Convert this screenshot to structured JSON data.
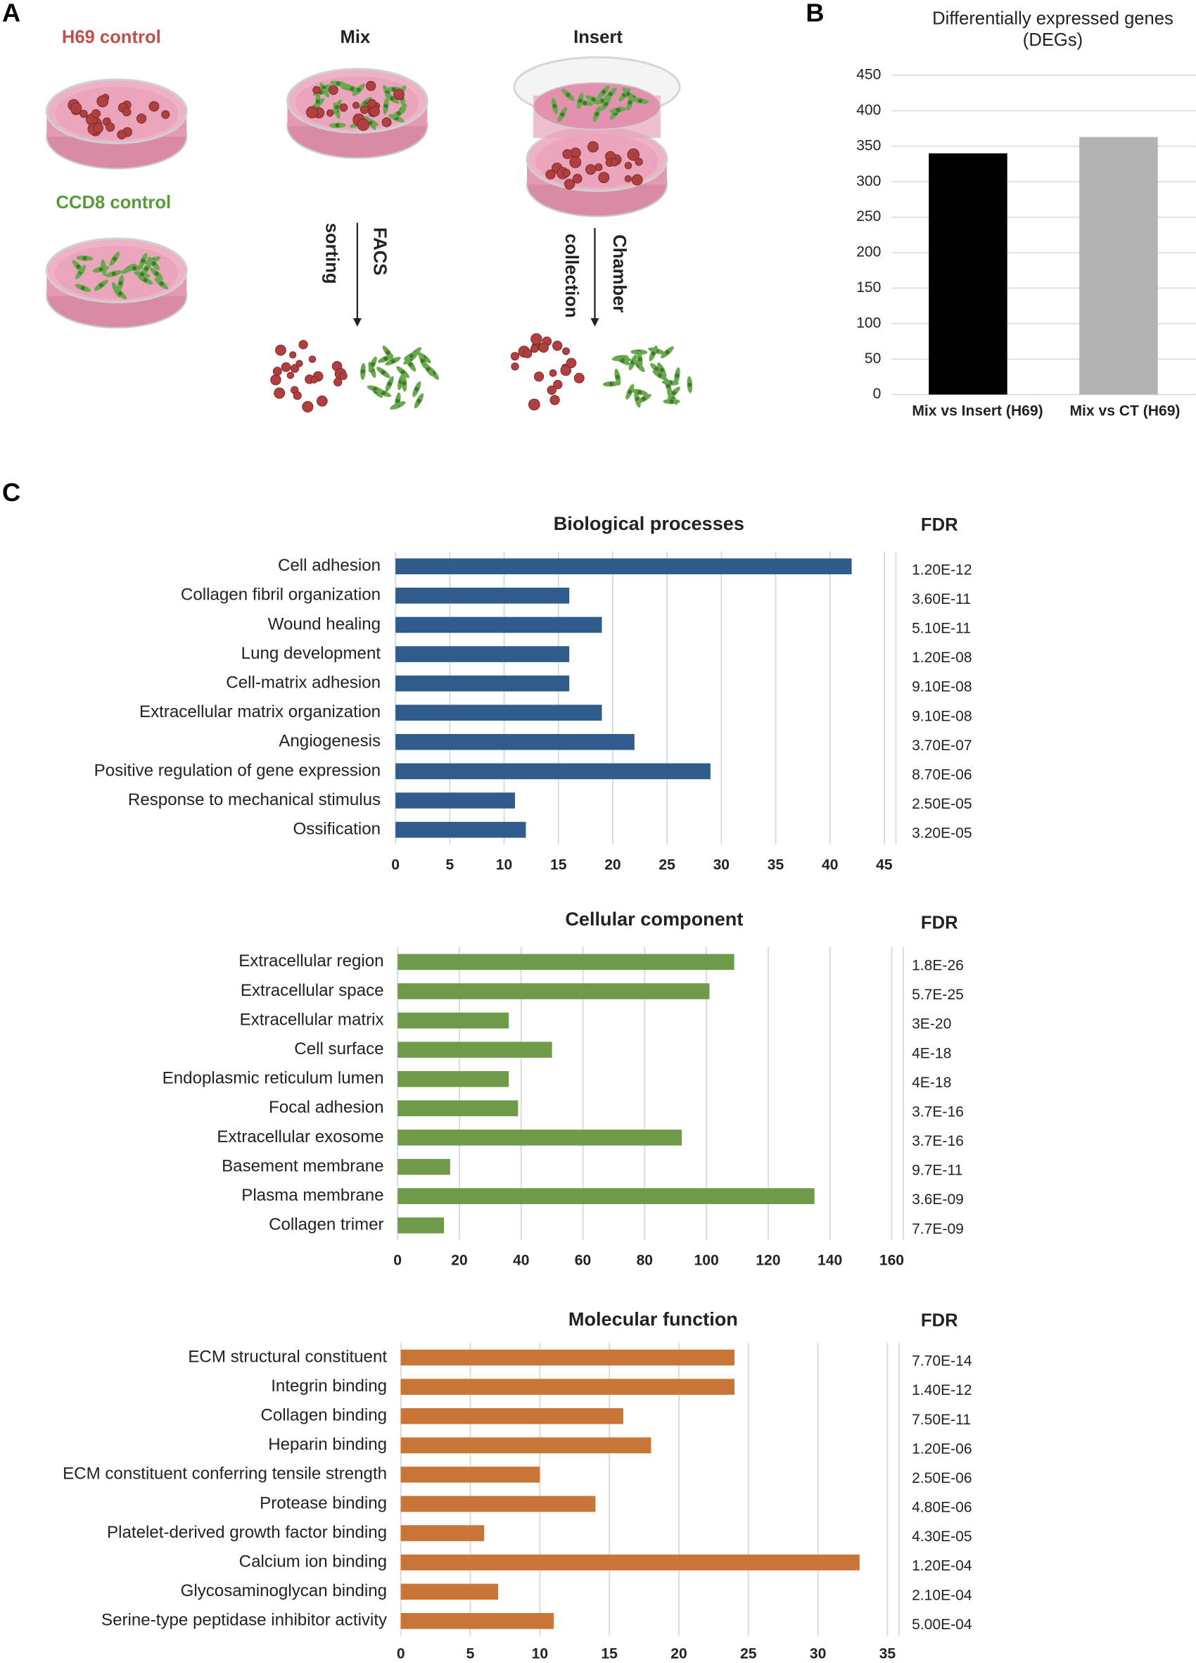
{
  "panel_labels": [
    "A",
    "B",
    "C"
  ],
  "diagram": {
    "h69_control": "H69 control",
    "ccd8_control": "CCD8 control",
    "mix": "Mix",
    "insert": "Insert",
    "facs": "FACS",
    "sorting": "sorting",
    "chamber": "Chamber",
    "collection": "collection"
  },
  "chart_data": [
    {
      "type": "bar",
      "title": "Differentially expressed genes (DEGs)",
      "categories": [
        "Mix vs Insert (H69)",
        "Mix vs CT (H69)"
      ],
      "values": [
        340,
        363
      ],
      "colors": [
        "#000000",
        "#b3b3b3"
      ],
      "ylim": [
        0,
        450
      ],
      "yticks": [
        0,
        50,
        100,
        150,
        200,
        250,
        300,
        350,
        400,
        450
      ],
      "grid": true
    },
    {
      "type": "barh",
      "title": "Biological processes",
      "categories": [
        "Cell adhesion",
        "Collagen fibril organization",
        "Wound healing",
        "Lung development",
        "Cell-matrix adhesion",
        "Extracellular matrix organization",
        "Angiogenesis",
        "Positive regulation of gene expression",
        "Response to mechanical stimulus",
        "Ossification"
      ],
      "values": [
        42,
        16,
        19,
        16,
        16,
        19,
        22,
        29,
        11,
        12
      ],
      "color": "#2f5c8a",
      "xlim": [
        0,
        45
      ],
      "xticks": [
        0,
        5,
        10,
        15,
        20,
        25,
        30,
        35,
        40,
        45
      ],
      "grid": true,
      "fdr_header": "FDR",
      "fdr": [
        "1.20E-12",
        "3.60E-11",
        "5.10E-11",
        "1.20E-08",
        "9.10E-08",
        "9.10E-08",
        "3.70E-07",
        "8.70E-06",
        "2.50E-05",
        "3.20E-05"
      ]
    },
    {
      "type": "barh",
      "title": "Cellular component",
      "categories": [
        "Extracellular region",
        "Extracellular space",
        "Extracellular matrix",
        "Cell surface",
        "Endoplasmic reticulum lumen",
        "Focal adhesion",
        "Extracellular exosome",
        "Basement membrane",
        "Plasma membrane",
        "Collagen trimer"
      ],
      "values": [
        109,
        101,
        36,
        50,
        36,
        39,
        92,
        17,
        135,
        15
      ],
      "color": "#6e9a4a",
      "xlim": [
        0,
        160
      ],
      "xticks": [
        0,
        20,
        40,
        60,
        80,
        100,
        120,
        140,
        160
      ],
      "grid": true,
      "fdr_header": "FDR",
      "fdr": [
        "1.8E-26",
        "5.7E-25",
        "3E-20",
        "4E-18",
        "4E-18",
        "3.7E-16",
        "3.7E-16",
        "9.7E-11",
        "3.6E-09",
        "7.7E-09"
      ]
    },
    {
      "type": "barh",
      "title": "Molecular function",
      "categories": [
        "ECM structural constituent",
        "Integrin binding",
        "Collagen binding",
        "Heparin binding",
        "ECM constituent conferring tensile strength",
        "Protease binding",
        "Platelet-derived growth factor binding",
        "Calcium ion binding",
        "Glycosaminoglycan binding",
        "Serine-type peptidase inhibitor activity"
      ],
      "values": [
        24,
        24,
        16,
        18,
        10,
        14,
        6,
        33,
        7,
        11
      ],
      "color": "#c87537",
      "xlim": [
        0,
        35
      ],
      "xticks": [
        0,
        5,
        10,
        15,
        20,
        25,
        30,
        35
      ],
      "grid": true,
      "fdr_header": "FDR",
      "fdr": [
        "7.70E-14",
        "1.40E-12",
        "7.50E-11",
        "1.20E-06",
        "2.50E-06",
        "4.80E-06",
        "4.30E-05",
        "1.20E-04",
        "2.10E-04",
        "5.00E-04"
      ]
    }
  ]
}
